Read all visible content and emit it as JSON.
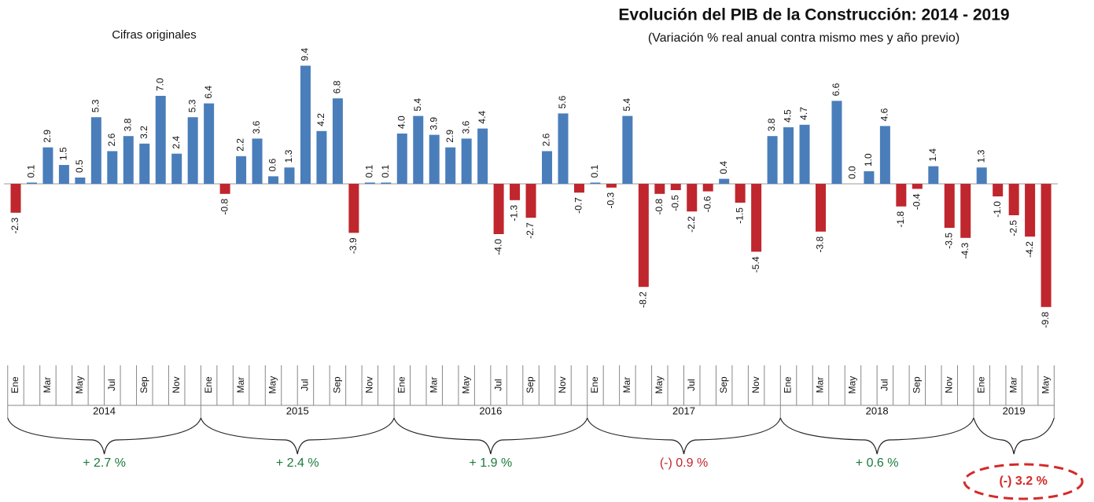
{
  "chart_data": {
    "type": "bar",
    "title": "Evolución del PIB de la Construcción: 2014 - 2019",
    "subtitle": "(Variación % real anual contra mismo mes y año previo)",
    "note": "Cifras originales",
    "positive_color": "#4a7ebb",
    "negative_color": "#c0262d",
    "categories": [
      "Ene",
      null,
      "Mar",
      null,
      "May",
      null,
      "Jul",
      null,
      "Sep",
      null,
      "Nov",
      null,
      "Ene",
      null,
      "Mar",
      null,
      "May",
      null,
      "Jul",
      null,
      "Sep",
      null,
      "Nov",
      null,
      "Ene",
      null,
      "Mar",
      null,
      "May",
      null,
      "Jul",
      null,
      "Sep",
      null,
      "Nov",
      null,
      "Ene",
      null,
      "Mar",
      null,
      "May",
      null,
      "Jul",
      null,
      "Sep",
      null,
      "Nov",
      null,
      "Ene",
      null,
      "Mar",
      null,
      "May",
      null,
      "Jul",
      null,
      "Sep",
      null,
      "Nov",
      null,
      "Ene",
      null,
      "Mar",
      null,
      "May"
    ],
    "values": [
      -2.3,
      0.1,
      2.9,
      1.5,
      0.5,
      5.3,
      2.6,
      3.8,
      3.2,
      7.0,
      2.4,
      5.3,
      6.4,
      -0.8,
      2.2,
      3.6,
      0.6,
      1.3,
      9.4,
      4.2,
      6.8,
      -3.9,
      0.1,
      0.1,
      4.0,
      5.4,
      3.9,
      2.9,
      3.6,
      4.4,
      -4.0,
      -1.3,
      -2.7,
      2.6,
      5.6,
      -0.7,
      0.1,
      -0.3,
      5.4,
      -8.2,
      -0.8,
      -0.5,
      -2.2,
      -0.6,
      0.4,
      -1.5,
      -5.4,
      3.8,
      4.5,
      4.7,
      -3.8,
      6.6,
      0.0,
      1.0,
      4.6,
      -1.8,
      -0.4,
      1.4,
      -3.5,
      -4.3,
      1.3,
      -1.0,
      -2.5,
      -4.2,
      -9.8
    ],
    "value_labels": [
      "-2.3",
      "0.1",
      "2.9",
      "1.5",
      "0.5",
      "5.3",
      "2.6",
      "3.8",
      "3.2",
      "7.0",
      "2.4",
      "5.3",
      "6.4",
      "-0.8",
      "2.2",
      "3.6",
      "0.6",
      "1.3",
      "9.4",
      "4.2",
      "6.8",
      "-3.9",
      "0.1",
      "0.1",
      "4.0",
      "5.4",
      "3.9",
      "2.9",
      "3.6",
      "4.4",
      "-4.0",
      "-1.3",
      "-2.7",
      "2.6",
      "5.6",
      "-0.7",
      "0.1",
      "-0.3",
      "5.4",
      "-8.2",
      "-0.8",
      "-0.5",
      "-2.2",
      "-0.6",
      "0.4",
      "-1.5",
      "-5.4",
      "3.8",
      "4.5",
      "4.7",
      "-3.8",
      "6.6",
      "0.0",
      "1.0",
      "4.6",
      "-1.8",
      "-0.4",
      "1.4",
      "-3.5",
      "-4.3",
      "1.3",
      "-1.0",
      "-2.5",
      "-4.2",
      "-9.8"
    ],
    "years": [
      {
        "label": "2014",
        "change": "+ 2.7 %",
        "color": "#1d7a3c",
        "highlight": false
      },
      {
        "label": "2015",
        "change": "+ 2.4 %",
        "color": "#1d7a3c",
        "highlight": false
      },
      {
        "label": "2016",
        "change": "+ 1.9 %",
        "color": "#1d7a3c",
        "highlight": false
      },
      {
        "label": "2017",
        "change": "(-) 0.9 %",
        "color": "#c0262d",
        "highlight": false
      },
      {
        "label": "2018",
        "change": "+ 0.6 %",
        "color": "#1d7a3c",
        "highlight": false
      },
      {
        "label": "2019",
        "change": "(-) 3.2 %",
        "color": "#d42a2a",
        "highlight": true
      }
    ]
  }
}
